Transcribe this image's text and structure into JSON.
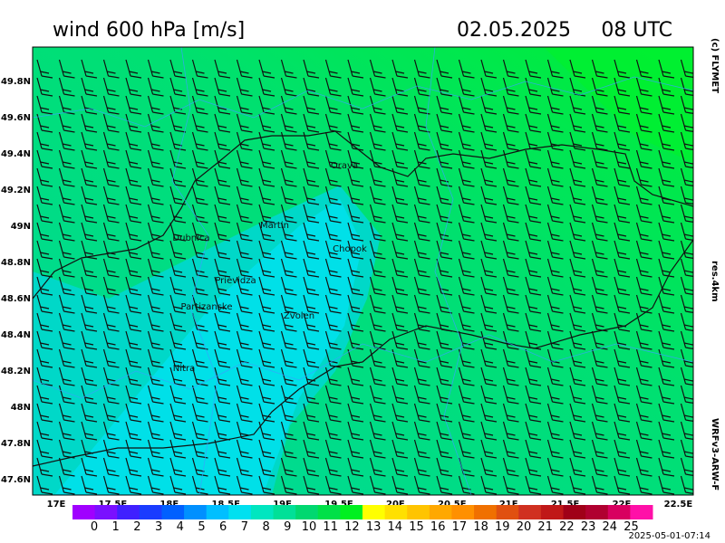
{
  "header": {
    "title": "wind 600 hPa [m/s]",
    "date": "02.05.2025",
    "time": "08 UTC"
  },
  "side": {
    "copyright": "(c) FLYMET",
    "resolution": "res.4km",
    "model": "WRFv3-ARW-F"
  },
  "axes": {
    "lon_labels": [
      "17E",
      "17.5E",
      "18E",
      "18.5E",
      "19E",
      "19.5E",
      "20E",
      "20.5E",
      "21E",
      "21.5E",
      "22E",
      "22.5E"
    ],
    "lat_labels": [
      "49.8N",
      "49.6N",
      "49.4N",
      "49.2N",
      "49N",
      "48.8N",
      "48.6N",
      "48.4N",
      "48.2N",
      "48N",
      "47.8N",
      "47.6N"
    ]
  },
  "cities": [
    "Orava",
    "Martin",
    "Dubnica",
    "Chopok",
    "Prievidza",
    "Partizanske",
    "Zvolen",
    "Nitra"
  ],
  "colorbar": {
    "labels": [
      "0",
      "1",
      "2",
      "3",
      "4",
      "5",
      "6",
      "7",
      "8",
      "9",
      "10",
      "11",
      "12",
      "13",
      "14",
      "15",
      "16",
      "17",
      "18",
      "19",
      "20",
      "21",
      "22",
      "23",
      "24",
      "25"
    ],
    "colors": [
      "#a000ff",
      "#7a10ff",
      "#4020ff",
      "#1a3cff",
      "#0060ff",
      "#0090ff",
      "#00bfff",
      "#00e0f0",
      "#00e6c0",
      "#00e098",
      "#00d870",
      "#00e048",
      "#00f020",
      "#ffff00",
      "#ffe000",
      "#ffc400",
      "#ffa800",
      "#ff9000",
      "#f07000",
      "#e05010",
      "#d03020",
      "#c01818",
      "#a00018",
      "#b00030",
      "#d80060",
      "#ff10a8"
    ]
  },
  "footer": {
    "timestamp": "2025-05-01-07:14"
  }
}
